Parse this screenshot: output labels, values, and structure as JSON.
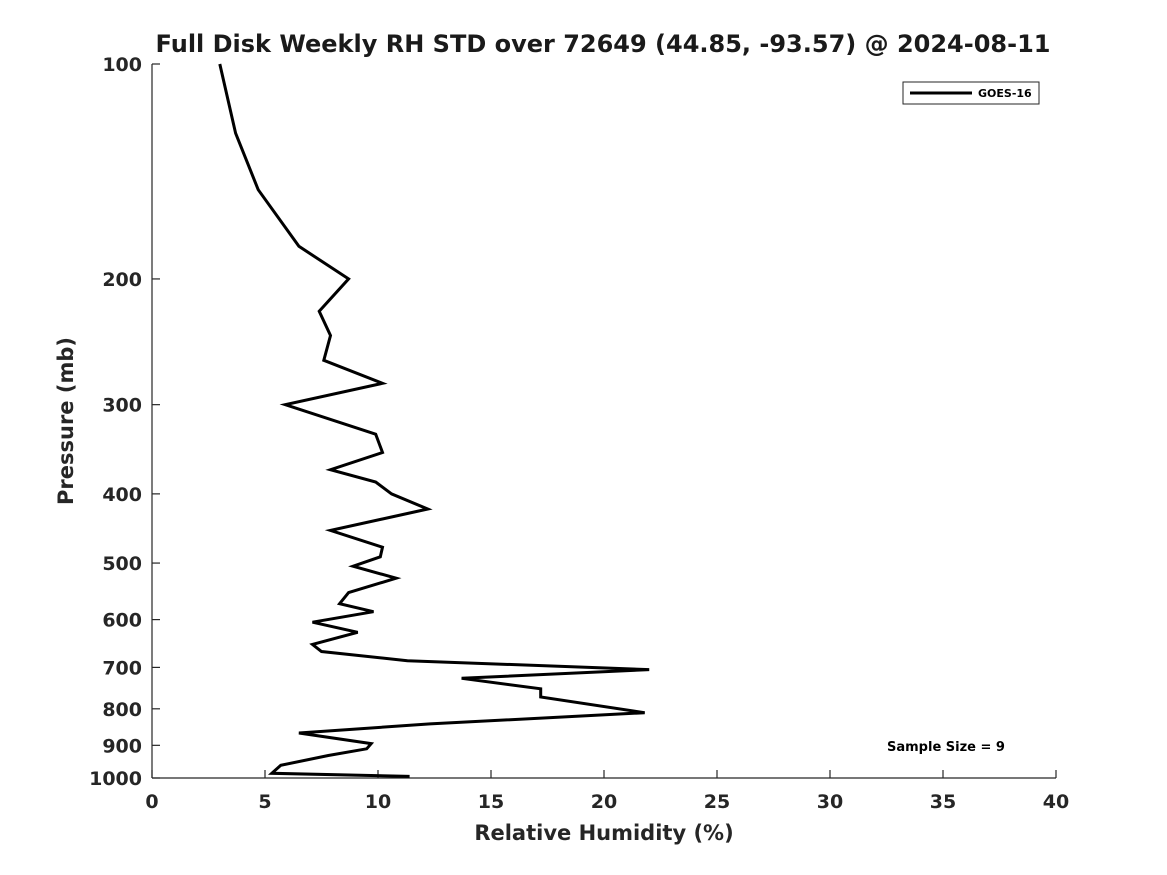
{
  "chart_data": {
    "type": "line",
    "title": "Full Disk Weekly RH STD over 72649 (44.85, -93.57) @ 2024-08-11",
    "xlabel": "Relative Humidity (%)",
    "ylabel": "Pressure (mb)",
    "xlim": [
      0,
      40
    ],
    "ylim": [
      100,
      1000
    ],
    "yscale": "log",
    "y_reversed": true,
    "xticks": [
      0,
      5,
      10,
      15,
      20,
      25,
      30,
      35,
      40
    ],
    "yticks": [
      100,
      200,
      300,
      400,
      500,
      600,
      700,
      800,
      900,
      1000
    ],
    "grid": false,
    "legend_position": "top-right",
    "annotation": "Sample Size = 9",
    "series": [
      {
        "name": "GOES-16",
        "color": "#000000",
        "points": [
          [
            3.0,
            100
          ],
          [
            3.7,
            125
          ],
          [
            4.7,
            150
          ],
          [
            6.5,
            180
          ],
          [
            8.7,
            200
          ],
          [
            7.4,
            222
          ],
          [
            7.9,
            240
          ],
          [
            7.6,
            260
          ],
          [
            10.2,
            280
          ],
          [
            5.9,
            300
          ],
          [
            9.9,
            330
          ],
          [
            10.2,
            350
          ],
          [
            7.9,
            370
          ],
          [
            9.9,
            385
          ],
          [
            10.6,
            400
          ],
          [
            12.2,
            420
          ],
          [
            7.9,
            450
          ],
          [
            10.2,
            475
          ],
          [
            10.1,
            490
          ],
          [
            8.9,
            505
          ],
          [
            10.8,
            525
          ],
          [
            8.7,
            550
          ],
          [
            8.3,
            570
          ],
          [
            9.8,
            585
          ],
          [
            7.1,
            605
          ],
          [
            9.1,
            625
          ],
          [
            7.1,
            650
          ],
          [
            7.5,
            665
          ],
          [
            11.3,
            685
          ],
          [
            22.0,
            705
          ],
          [
            13.7,
            725
          ],
          [
            17.2,
            750
          ],
          [
            17.2,
            770
          ],
          [
            21.8,
            810
          ],
          [
            12.3,
            840
          ],
          [
            6.5,
            865
          ],
          [
            9.7,
            895
          ],
          [
            9.5,
            910
          ],
          [
            7.8,
            930
          ],
          [
            5.7,
            960
          ],
          [
            5.3,
            985
          ],
          [
            11.4,
            995
          ]
        ]
      }
    ]
  }
}
